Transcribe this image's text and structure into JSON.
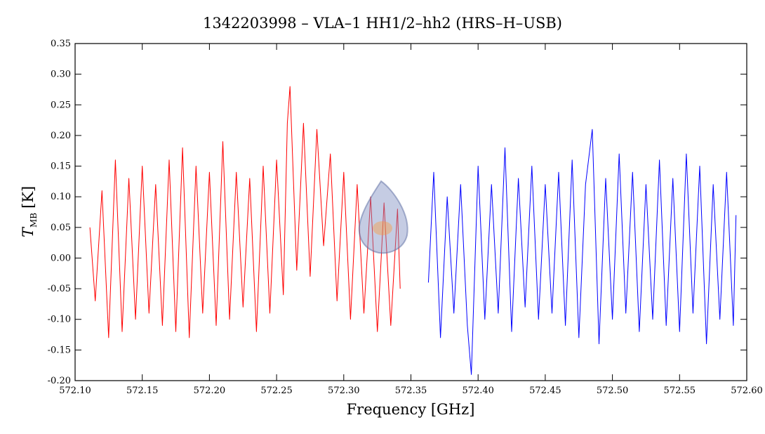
{
  "chart_data": {
    "type": "line",
    "title": "1342203998 – VLA–1 HH1/2–hh2 (HRS–H–USB)",
    "xlabel": "Frequency [GHz]",
    "ylabel_main": "T",
    "ylabel_sub": "MB",
    "ylabel_unit": "[K]",
    "xlim": [
      572.1,
      572.6
    ],
    "ylim": [
      -0.2,
      0.35
    ],
    "x_ticks": [
      {
        "value": 572.1,
        "label": "572.10"
      },
      {
        "value": 572.15,
        "label": "572.15"
      },
      {
        "value": 572.2,
        "label": "572.20"
      },
      {
        "value": 572.25,
        "label": "572.25"
      },
      {
        "value": 572.3,
        "label": "572.30"
      },
      {
        "value": 572.35,
        "label": "572.35"
      },
      {
        "value": 572.4,
        "label": "572.40"
      },
      {
        "value": 572.45,
        "label": "572.45"
      },
      {
        "value": 572.5,
        "label": "572.50"
      },
      {
        "value": 572.55,
        "label": "572.55"
      },
      {
        "value": 572.6,
        "label": "572.60"
      }
    ],
    "y_ticks": [
      {
        "value": 0.35,
        "label": "0.35"
      },
      {
        "value": 0.3,
        "label": "0.30"
      },
      {
        "value": 0.25,
        "label": "0.25"
      },
      {
        "value": 0.2,
        "label": "0.20"
      },
      {
        "value": 0.15,
        "label": "0.15"
      },
      {
        "value": 0.1,
        "label": "0.10"
      },
      {
        "value": 0.05,
        "label": "0.05"
      },
      {
        "value": 0.0,
        "label": "0.00"
      },
      {
        "value": -0.05,
        "label": "-0.05"
      },
      {
        "value": -0.1,
        "label": "-0.10"
      },
      {
        "value": -0.15,
        "label": "-0.15"
      },
      {
        "value": -0.2,
        "label": "-0.20"
      }
    ],
    "grid": false,
    "series": [
      {
        "color": "#ff0000",
        "x": [
          572.111,
          572.115,
          572.12,
          572.125,
          572.13,
          572.135,
          572.14,
          572.145,
          572.15,
          572.155,
          572.16,
          572.165,
          572.17,
          572.175,
          572.18,
          572.185,
          572.19,
          572.195,
          572.2,
          572.205,
          572.21,
          572.215,
          572.22,
          572.225,
          572.23,
          572.235,
          572.24,
          572.245,
          572.25,
          572.255,
          572.258,
          572.26,
          572.265,
          572.27,
          572.275,
          572.28,
          572.285,
          572.29,
          572.295,
          572.3,
          572.305,
          572.31,
          572.315,
          572.32,
          572.325,
          572.33,
          572.335,
          572.34,
          572.342
        ],
        "y": [
          0.05,
          -0.07,
          0.11,
          -0.13,
          0.16,
          -0.12,
          0.13,
          -0.1,
          0.15,
          -0.09,
          0.12,
          -0.11,
          0.16,
          -0.12,
          0.18,
          -0.13,
          0.15,
          -0.09,
          0.14,
          -0.11,
          0.19,
          -0.1,
          0.14,
          -0.08,
          0.13,
          -0.12,
          0.15,
          -0.09,
          0.16,
          -0.06,
          0.22,
          0.28,
          -0.02,
          0.22,
          -0.03,
          0.21,
          0.02,
          0.17,
          -0.07,
          0.14,
          -0.1,
          0.12,
          -0.09,
          0.1,
          -0.12,
          0.09,
          -0.11,
          0.08,
          -0.05
        ]
      },
      {
        "color": "#0000ff",
        "x": [
          572.363,
          572.367,
          572.372,
          572.377,
          572.382,
          572.387,
          572.392,
          572.395,
          572.4,
          572.405,
          572.41,
          572.415,
          572.42,
          572.425,
          572.43,
          572.435,
          572.44,
          572.445,
          572.45,
          572.455,
          572.46,
          572.465,
          572.47,
          572.475,
          572.48,
          572.485,
          572.49,
          572.495,
          572.5,
          572.505,
          572.51,
          572.515,
          572.52,
          572.525,
          572.53,
          572.535,
          572.54,
          572.545,
          572.55,
          572.555,
          572.56,
          572.565,
          572.57,
          572.575,
          572.58,
          572.585,
          572.59,
          572.592
        ],
        "y": [
          -0.04,
          0.14,
          -0.13,
          0.1,
          -0.09,
          0.12,
          -0.11,
          -0.19,
          0.15,
          -0.1,
          0.12,
          -0.09,
          0.18,
          -0.12,
          0.13,
          -0.08,
          0.15,
          -0.1,
          0.12,
          -0.09,
          0.14,
          -0.11,
          0.16,
          -0.13,
          0.12,
          0.21,
          -0.14,
          0.13,
          -0.1,
          0.17,
          -0.09,
          0.14,
          -0.12,
          0.12,
          -0.1,
          0.16,
          -0.11,
          0.13,
          -0.12,
          0.17,
          -0.09,
          0.15,
          -0.14,
          0.12,
          -0.1,
          0.14,
          -0.11,
          0.07
        ]
      }
    ]
  }
}
